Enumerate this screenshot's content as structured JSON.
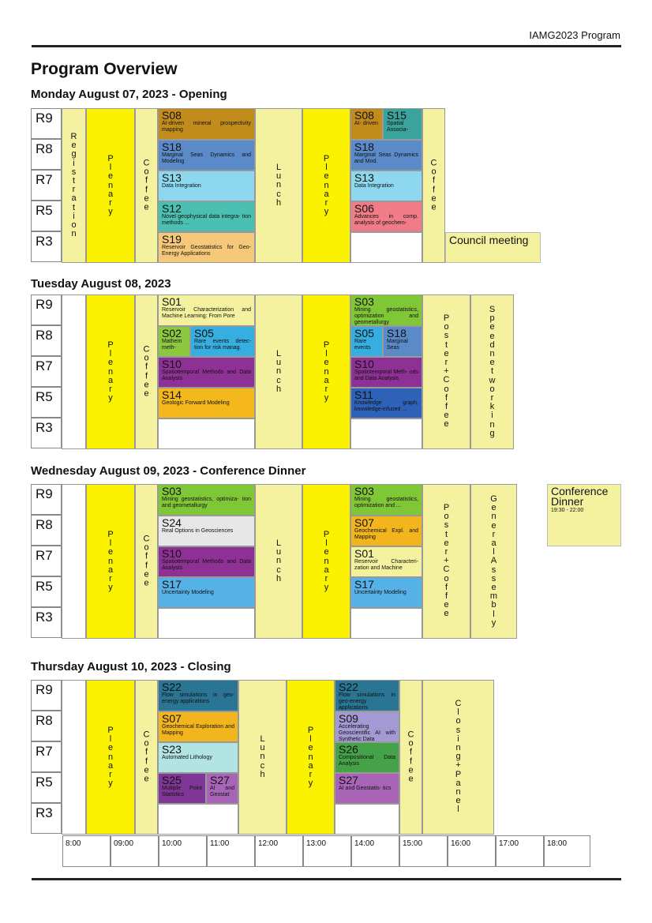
{
  "header": {
    "right_title": "IAMG2023 Program"
  },
  "page_title": "Program Overview",
  "rooms": [
    "R9",
    "R8",
    "R7",
    "R5",
    "R3"
  ],
  "labels": {
    "registration": "Registration",
    "plenary": "Plenary",
    "coffee": "Coffee",
    "lunch": "Lunch",
    "poster_coffee": "Poster+Coffee",
    "speed_networking": "Speednetworking",
    "general_assembly": "GeneralAssembly",
    "closing_panel": "Closing+Panel"
  },
  "colors": {
    "plenary": "#faf200",
    "pale_yellow": "#f5f29f",
    "s08": "#c28c1c",
    "s15": "#3aa39b",
    "s18": "#5a8ac8",
    "s13": "#8dd8ee",
    "s12": "#4bbfb1",
    "s06": "#ef7c86",
    "s19": "#f6c97a",
    "s01": "#f5f29f",
    "s02": "#8bc83f",
    "s05": "#36aee0",
    "s10": "#8e3195",
    "s14": "#f4b81d",
    "s03": "#80c738",
    "s11": "#2d62b8",
    "s24": "#e7e7e7",
    "s17": "#56b1e6",
    "s07": "#f2b51d",
    "s22": "#2b7594",
    "s23": "#b2e4e4",
    "s25": "#7f3696",
    "s27": "#a865b7",
    "s09": "#a39ad3",
    "s26": "#46a248"
  },
  "days": [
    {
      "title": "Monday August 07, 2023 - Opening",
      "morning": [
        {
          "code": "S08",
          "desc": "AI-driven mineral prospectivity mapping"
        },
        {
          "code": "S18",
          "desc": "Marginal Seas Dynamics and Modeling"
        },
        {
          "code": "S13",
          "desc": "Data Integration"
        },
        {
          "code": "S12",
          "desc": "Novel geophysical data integra- tion methods ..."
        },
        {
          "code": "S19",
          "desc": "Reservoir Geostatistics for Geo-Energy Applications"
        }
      ],
      "afternoon": [
        {
          "code": "S08",
          "desc": "AI- driven"
        },
        {
          "code": "S15",
          "desc": "Spatial Associa-"
        },
        {
          "code": "S18",
          "desc": "Marginal Seas Dynamics and Mod."
        },
        {
          "code": "S13",
          "desc": "Data Integration"
        },
        {
          "code": "S06",
          "desc": "Advances in comp. analysis of geochem-"
        }
      ],
      "council": "Council meeting"
    },
    {
      "title": "Tuesday August 08, 2023",
      "morning": [
        {
          "code": "S01",
          "desc": "Reservoir Characterization and Machine Learning: From Pore"
        },
        {
          "code": "S02",
          "desc": "Mathem meth-"
        },
        {
          "code": "S05",
          "desc": "Rare events detec- tion for risk manag."
        },
        {
          "code": "S10",
          "desc": "Spatiotemporal Methods and Data Analysis"
        },
        {
          "code": "S14",
          "desc": "Geologic Forward Modeling"
        }
      ],
      "afternoon": [
        {
          "code": "S03",
          "desc": "Mining geostatistics, optimization and geometallurgy"
        },
        {
          "code": "S05",
          "desc": "Rare events"
        },
        {
          "code": "S18",
          "desc": "Marginal Seas"
        },
        {
          "code": "S10",
          "desc": "Spatiotemporal Meth- ods and Data Analysis"
        },
        {
          "code": "S11",
          "desc": "Knowledge graph, knowledge-infused ..."
        }
      ]
    },
    {
      "title": "Wednesday August 09, 2023 - Conference Dinner",
      "morning": [
        {
          "code": "S03",
          "desc": "Mining geostatistics, optimiza- tion and geometallurgy"
        },
        {
          "code": "S24",
          "desc": "Real Options in Geosciences"
        },
        {
          "code": "S10",
          "desc": "Spatiotemporal Methods and Data Analysis"
        },
        {
          "code": "S17",
          "desc": "Uncertainty Modeling"
        }
      ],
      "afternoon": [
        {
          "code": "S03",
          "desc": "Mining geostatistics, optimization and ..."
        },
        {
          "code": "S07",
          "desc": "Geochemical Expl. and Mapping"
        },
        {
          "code": "S01",
          "desc": "Reservoir Characteri- zation and Machine"
        },
        {
          "code": "S17",
          "desc": "Uncertainty Modeling"
        }
      ],
      "dinner": {
        "title": "Conference Dinner",
        "time": "19:30 - 22:00"
      }
    },
    {
      "title": "Thursday August 10, 2023 - Closing",
      "morning": [
        {
          "code": "S22",
          "desc": "Flow simulations in geo- energy applications"
        },
        {
          "code": "S07",
          "desc": "Geochemical Exploration and Mapping"
        },
        {
          "code": "S23",
          "desc": "Automated Lithology"
        },
        {
          "code": "S25",
          "desc": "Multiple Point Statistics"
        },
        {
          "code": "S27",
          "desc": "AI and Geostat"
        }
      ],
      "afternoon": [
        {
          "code": "S22",
          "desc": "Flow simulations in geo-energy applications"
        },
        {
          "code": "S09",
          "desc": "Accelerating Geoscientific AI with Synthetic Data"
        },
        {
          "code": "S26",
          "desc": "Compositional Data Analysis"
        },
        {
          "code": "S27",
          "desc": "AI and Geostatis- tics"
        }
      ]
    }
  ],
  "times": [
    "8:00",
    "09:00",
    "10:00",
    "11:00",
    "12:00",
    "13:00",
    "14:00",
    "15:00",
    "16:00",
    "17:00",
    "18:00"
  ]
}
